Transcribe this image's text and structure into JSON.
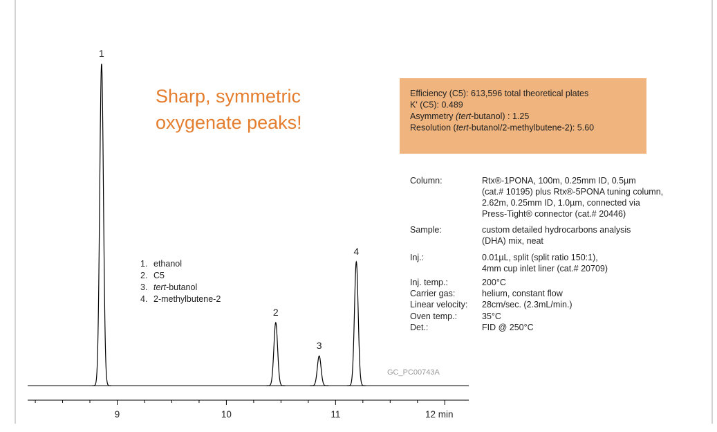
{
  "chart_data": {
    "type": "chromatogram",
    "xlim": [
      8.18,
      12.22
    ],
    "ylim": [
      0,
      100
    ],
    "xticks": [
      9,
      10,
      11,
      {
        "value": 12,
        "label": "12 min"
      }
    ],
    "minor_xticks": [
      8.25,
      8.5,
      8.75,
      9.25,
      9.5,
      9.75,
      10.25,
      10.5,
      10.75,
      11.25,
      11.5,
      11.75
    ],
    "color": "#000000",
    "peaks": {
      "labels": [
        "1",
        "2",
        "3",
        "4"
      ],
      "x": [
        8.857,
        10.452,
        10.85,
        11.19
      ],
      "values": [
        98.5,
        19.3,
        9.1,
        37.9
      ]
    },
    "legend": [
      [
        "1.",
        [
          "ethanol"
        ]
      ],
      [
        "2.",
        [
          "C5"
        ]
      ],
      [
        "3.",
        [
          {
            "i": "tert"
          },
          "-butanol"
        ]
      ],
      [
        "4.",
        [
          "2-methylbutene-2"
        ]
      ]
    ],
    "headline": [
      "Sharp, symmetric",
      "oxygenate peaks!"
    ],
    "headline_color": "#e47e2e",
    "stats_box": {
      "color": "#f0b47e",
      "lines": [
        [
          "Efficiency (C5): 613,596 total theoretical plates"
        ],
        [
          "K' (C5): 0.489"
        ],
        [
          "Asymmetry ",
          {
            "i": "(tert"
          },
          "-butanol) : 1.25"
        ],
        [
          "Resolution (",
          {
            "i": "tert"
          },
          "-butanol/2-methylbutene-2): 5.60"
        ]
      ]
    },
    "conditions": [
      [
        "Column:",
        [
          "Rtx®-1PONA, 100m, 0.25mm ID, 0.5µm",
          "(cat.# 10195) plus Rtx®-5PONA tuning column,",
          "2.62m, 0.25mm ID, 1.0µm, connected via",
          "Press-Tight® connector (cat.# 20446)"
        ]
      ],
      [
        "Sample:",
        [
          "custom detailed hydrocarbons analysis",
          "(DHA) mix, neat"
        ]
      ],
      [
        "Inj.:",
        [
          "0.01µL, split (split ratio 150:1),",
          "4mm cup inlet liner (cat.# 20709)"
        ]
      ],
      [
        "Inj. temp.:",
        [
          "200°C"
        ]
      ],
      [
        "Carrier gas:",
        [
          "helium, constant flow"
        ]
      ],
      [
        "Linear velocity:",
        [
          "28cm/sec. (2.3mL/min.)"
        ]
      ],
      [
        "Oven temp.:",
        [
          "35°C"
        ]
      ],
      [
        "Det.:",
        [
          "FID @ 250°C"
        ]
      ]
    ],
    "code": "GC_PC00743A"
  }
}
